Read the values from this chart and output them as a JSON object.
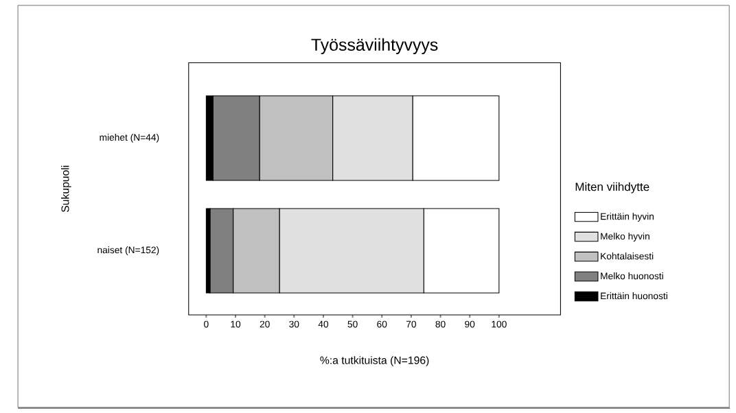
{
  "chart_data": {
    "type": "bar",
    "orientation": "horizontal",
    "stacked": true,
    "title": "Työssäviihtyvyys",
    "xlabel": "%:a tutkituista (N=196)",
    "ylabel": "Sukupuoli",
    "legend_title": "Miten viihdytte",
    "legend": "right",
    "categories": [
      "miehet (N=44)",
      "naiset (N=152)"
    ],
    "series": [
      {
        "name": "Erittäin huonosti",
        "color": "#000000",
        "values": [
          2.3,
          1.3
        ]
      },
      {
        "name": "Melko huonosti",
        "color": "#808080",
        "values": [
          15.9,
          7.9
        ]
      },
      {
        "name": "Kohtalaisesti",
        "color": "#c0c0c0",
        "values": [
          25.0,
          15.8
        ]
      },
      {
        "name": "Melko hyvin",
        "color": "#e0e0e0",
        "values": [
          27.3,
          49.3
        ]
      },
      {
        "name": "Erittäin hyvin",
        "color": "#ffffff",
        "values": [
          29.5,
          25.7
        ]
      }
    ],
    "xlim": [
      -6,
      121
    ],
    "xticks": [
      0,
      10,
      20,
      30,
      40,
      50,
      60,
      70,
      80,
      90,
      100
    ]
  }
}
